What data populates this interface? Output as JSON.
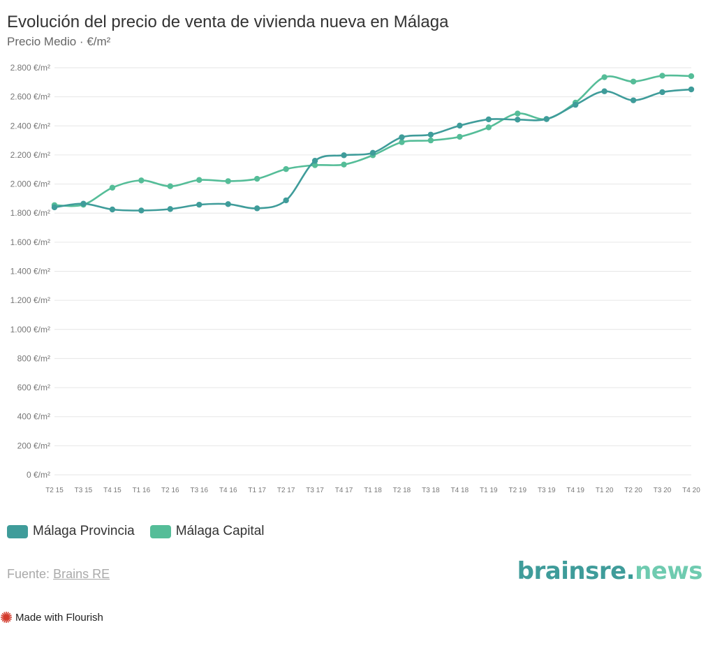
{
  "header": {
    "title": "Evolución del precio de venta de vivienda nueva en Málaga",
    "subtitle": "Precio Medio · €/m²"
  },
  "colors": {
    "provincia": "#3f9c9a",
    "capital": "#55bd98",
    "grid": "#e6e6e6",
    "axis_text": "#777777",
    "logo_primary": "#3f9c9a",
    "logo_secondary": "#6fcbb0"
  },
  "chart_data": {
    "type": "line",
    "title": "Evolución del precio de venta de vivienda nueva en Málaga",
    "subtitle": "Precio Medio · €/m²",
    "categories": [
      "T2 15",
      "T3 15",
      "T4 15",
      "T1 16",
      "T2 16",
      "T3 16",
      "T4 16",
      "T1 17",
      "T2 17",
      "T3 17",
      "T4 17",
      "T1 18",
      "T2 18",
      "T3 18",
      "T4 18",
      "T1 19",
      "T2 19",
      "T3 19",
      "T4 19",
      "T1 20",
      "T2 20",
      "T3 20",
      "T4 20"
    ],
    "series": [
      {
        "name": "Málaga Provincia",
        "values": [
          1840,
          1865,
          1825,
          1818,
          1828,
          1858,
          1862,
          1833,
          1888,
          2160,
          2198,
          2215,
          2322,
          2340,
          2402,
          2445,
          2443,
          2447,
          2545,
          2638,
          2576,
          2632,
          2651
        ]
      },
      {
        "name": "Málaga Capital",
        "values": [
          1855,
          1858,
          1975,
          2025,
          1985,
          2028,
          2020,
          2036,
          2103,
          2130,
          2134,
          2198,
          2288,
          2300,
          2325,
          2390,
          2485,
          2447,
          2560,
          2735,
          2705,
          2745,
          2742
        ]
      }
    ],
    "y_ticks": [
      "0 €/m²",
      "200 €/m²",
      "400 €/m²",
      "600 €/m²",
      "800 €/m²",
      "1.000 €/m²",
      "1.200 €/m²",
      "1.400 €/m²",
      "1.600 €/m²",
      "1.800 €/m²",
      "2.000 €/m²",
      "2.200 €/m²",
      "2.400 €/m²",
      "2.600 €/m²",
      "2.800 €/m²"
    ],
    "ylim": [
      0,
      2800
    ],
    "xlabel": "",
    "ylabel": "",
    "grid": true,
    "legend_position": "bottom-left"
  },
  "legend": {
    "provincia": "Málaga Provincia",
    "capital": "Málaga Capital"
  },
  "footer": {
    "source_label": "Fuente:",
    "source_link": "Brains RE",
    "logo_main": "brainsre",
    "logo_dot": ".",
    "logo_tld": "news",
    "made_with": "Made with Flourish"
  }
}
